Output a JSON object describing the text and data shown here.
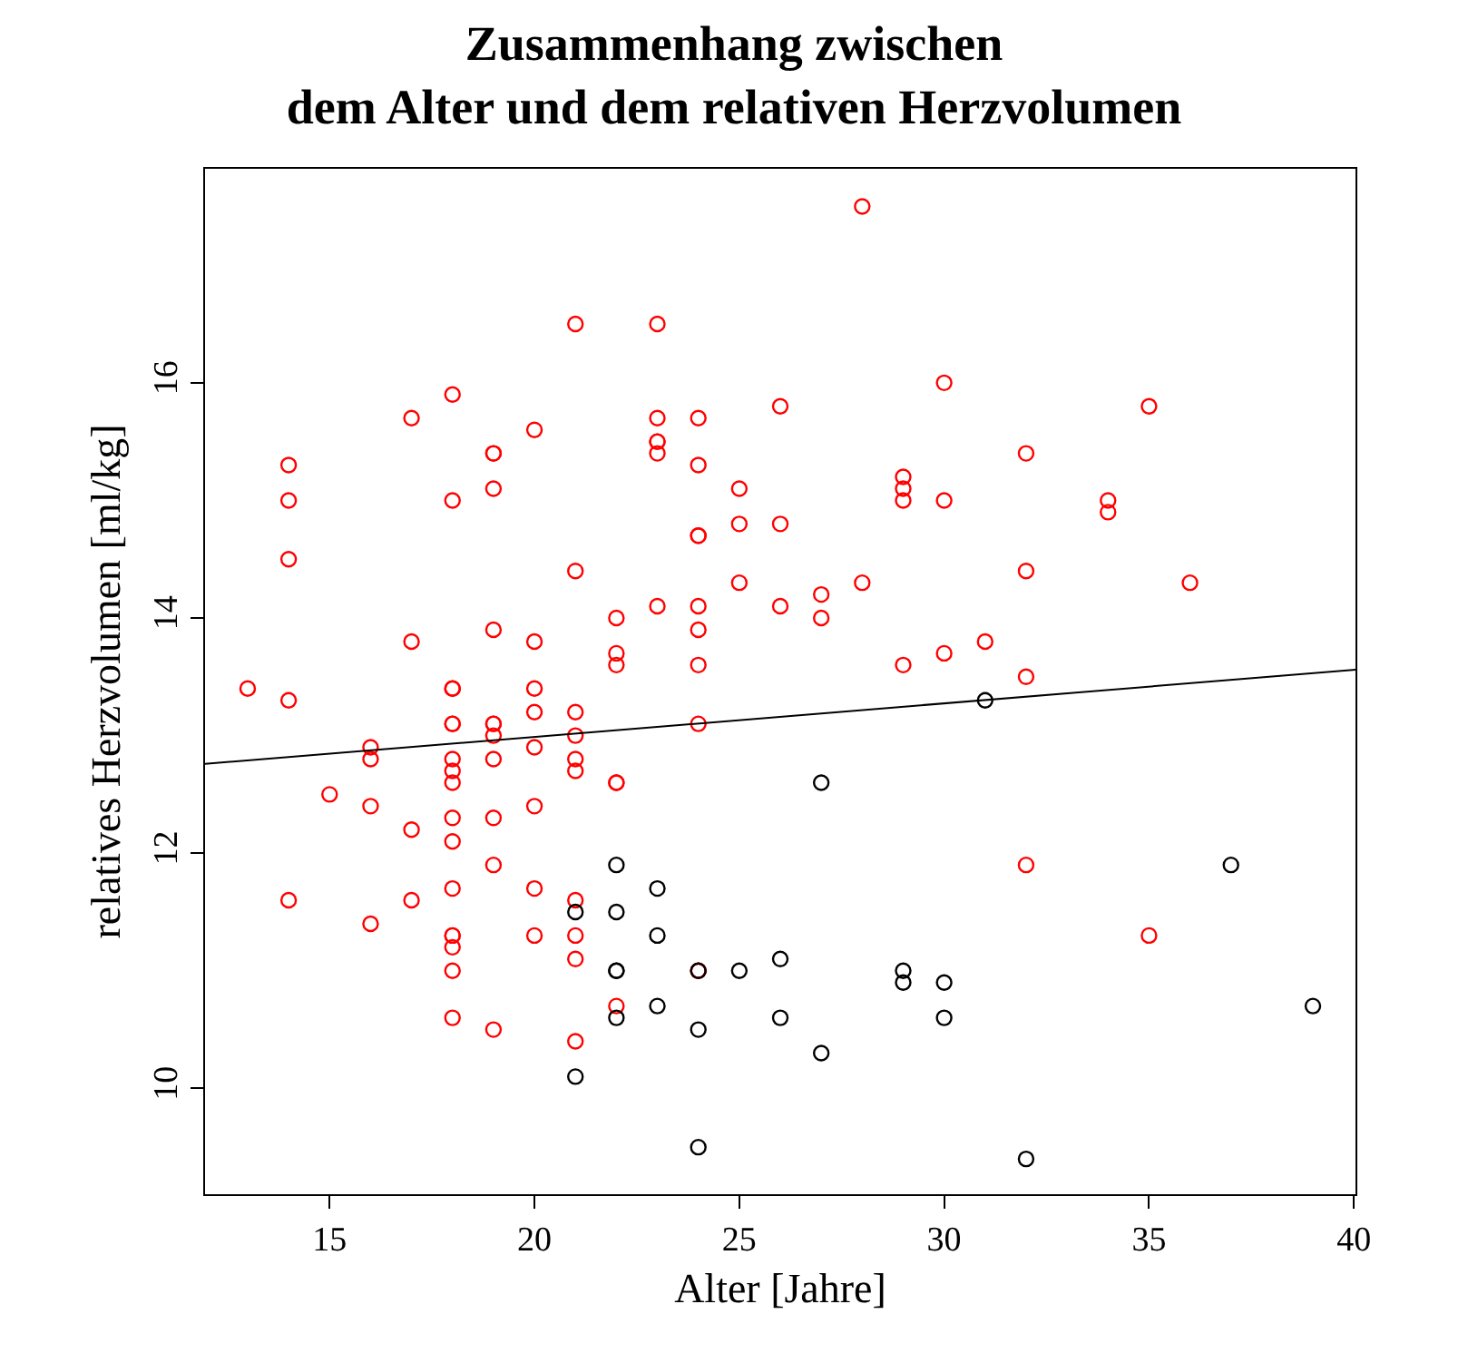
{
  "chart_data": {
    "type": "scatter",
    "title": "Zusammenhang zwischen\ndem Alter und dem relativen Herzvolumen",
    "xlabel": "Alter [Jahre]",
    "ylabel": "relatives Herzvolumen [ml/kg]",
    "xlim": [
      11.96,
      40.04
    ],
    "xticks": [
      15,
      20,
      25,
      30,
      35,
      40
    ],
    "ylim": [
      9.1,
      17.82
    ],
    "yticks": [
      10,
      12,
      14,
      16
    ],
    "grid": false,
    "series": [
      {
        "color": "#ff0000",
        "marker": "circle",
        "x": [
          13,
          14,
          14,
          14,
          14,
          14,
          15,
          16,
          16,
          16,
          16,
          17,
          17,
          17,
          17,
          18,
          18,
          18,
          18,
          18,
          18,
          18,
          18,
          18,
          18,
          18,
          18,
          18,
          18,
          18,
          18,
          18,
          19,
          19,
          19,
          19,
          19,
          19,
          19,
          19,
          19,
          19,
          19,
          20,
          20,
          20,
          20,
          20,
          20,
          20,
          20,
          21,
          21,
          21,
          21,
          21,
          21,
          21,
          21,
          21,
          21,
          22,
          22,
          22,
          22,
          22,
          22,
          23,
          23,
          23,
          23,
          23,
          23,
          24,
          24,
          24,
          24,
          24,
          24,
          24,
          24,
          24,
          24,
          25,
          25,
          25,
          26,
          26,
          26,
          27,
          27,
          28,
          28,
          29,
          29,
          29,
          29,
          30,
          30,
          30,
          31,
          32,
          32,
          32,
          32,
          34,
          34,
          35,
          35,
          36
        ],
        "values": [
          13.4,
          15.3,
          15.0,
          14.5,
          13.3,
          11.6,
          12.5,
          12.9,
          12.8,
          12.4,
          11.4,
          15.7,
          13.8,
          12.2,
          11.6,
          15.9,
          15.0,
          13.4,
          13.4,
          13.1,
          13.1,
          12.8,
          12.7,
          12.6,
          12.3,
          12.1,
          11.7,
          11.3,
          11.3,
          11.2,
          11.0,
          10.6,
          15.4,
          15.4,
          15.1,
          13.9,
          13.1,
          13.1,
          13.0,
          12.8,
          12.3,
          11.9,
          10.5,
          15.6,
          13.8,
          13.4,
          13.2,
          12.9,
          12.4,
          11.7,
          11.3,
          16.5,
          14.4,
          13.2,
          13.0,
          12.8,
          12.7,
          11.6,
          11.3,
          11.1,
          10.4,
          14.0,
          13.7,
          13.6,
          12.6,
          12.6,
          10.7,
          16.5,
          15.7,
          15.5,
          15.5,
          15.4,
          14.1,
          15.7,
          15.3,
          14.7,
          14.7,
          14.1,
          13.9,
          13.6,
          13.1,
          11.0,
          11.0,
          15.1,
          14.8,
          14.3,
          15.8,
          14.8,
          14.1,
          14.2,
          14.0,
          17.5,
          14.3,
          15.2,
          15.1,
          15.0,
          13.6,
          16.0,
          15.0,
          13.7,
          13.8,
          15.4,
          14.4,
          13.5,
          11.9,
          15.0,
          14.9,
          15.8,
          11.3,
          14.3
        ]
      },
      {
        "color": "#000000",
        "marker": "circle",
        "x": [
          21,
          21,
          22,
          22,
          22,
          22,
          22,
          23,
          23,
          23,
          24,
          24,
          24,
          25,
          26,
          26,
          27,
          27,
          29,
          29,
          30,
          30,
          31,
          32,
          37,
          39
        ],
        "values": [
          11.5,
          10.1,
          11.9,
          11.5,
          11.0,
          11.0,
          10.6,
          11.7,
          11.3,
          10.7,
          11.0,
          10.5,
          9.5,
          11.0,
          11.1,
          10.6,
          12.6,
          10.3,
          11.0,
          10.9,
          10.9,
          10.6,
          13.3,
          9.4,
          11.9,
          10.7
        ]
      },
      {
        "type": "line",
        "color": "#000000",
        "line_style": "solid",
        "marker": "none",
        "x": [
          11.96,
          40.04
        ],
        "values": [
          12.76,
          13.56
        ]
      }
    ]
  }
}
